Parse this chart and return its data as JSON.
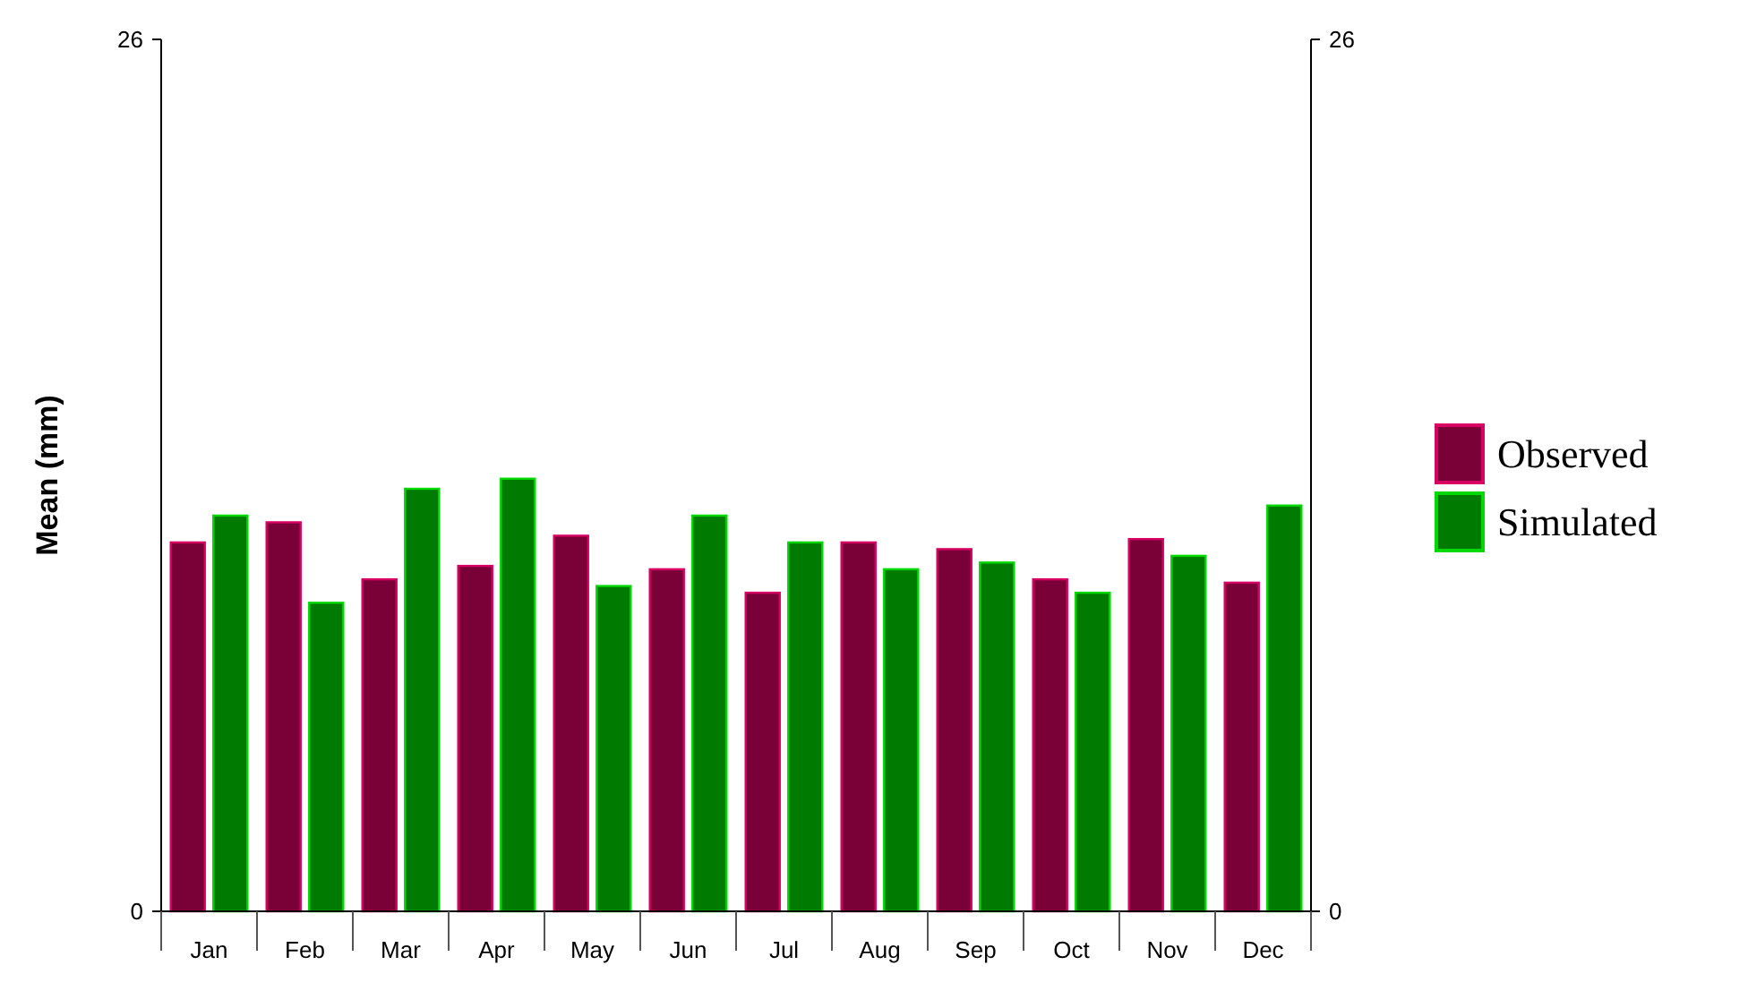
{
  "chart_data": {
    "type": "bar",
    "ylabel": "Mean (mm)",
    "categories": [
      "Jan",
      "Feb",
      "Mar",
      "Apr",
      "May",
      "Jun",
      "Jul",
      "Aug",
      "Sep",
      "Oct",
      "Nov",
      "Dec"
    ],
    "series": [
      {
        "name": "Observed",
        "color": "#7a0038",
        "values": [
          11.0,
          11.6,
          9.9,
          10.3,
          11.2,
          10.2,
          9.5,
          11.0,
          10.8,
          9.9,
          11.1,
          9.8
        ]
      },
      {
        "name": "Simulated",
        "color": "#007a00",
        "values": [
          11.8,
          9.2,
          12.6,
          12.9,
          9.7,
          11.8,
          11.0,
          10.2,
          10.4,
          9.5,
          10.6,
          12.1
        ]
      }
    ],
    "ylim": [
      0,
      26
    ],
    "yticks": [
      0,
      26
    ],
    "y2lim": [
      0,
      26
    ],
    "y2ticks": [
      0,
      26
    ],
    "grid": false,
    "legend": "right"
  }
}
